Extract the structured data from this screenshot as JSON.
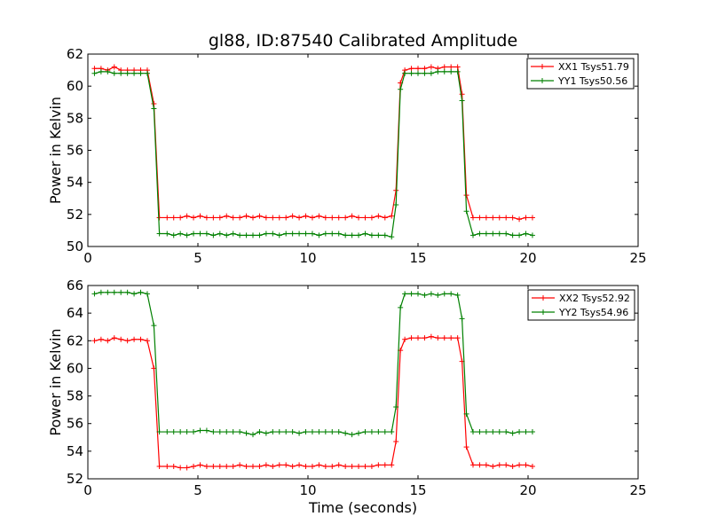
{
  "figure": {
    "title": "gl88, ID:87540 Calibrated Amplitude",
    "xlabel": "Time (seconds)",
    "colors": {
      "xx": "#ff0000",
      "yy": "#008000"
    }
  },
  "chart_data": [
    {
      "type": "line",
      "title": "gl88, ID:87540 Calibrated Amplitude",
      "xlabel": "",
      "ylabel": "Power in Kelvin",
      "xlim": [
        0,
        25
      ],
      "ylim": [
        50,
        62
      ],
      "xticks": [
        "0",
        "5",
        "10",
        "15",
        "20",
        "25"
      ],
      "yticks": [
        "50",
        "52",
        "54",
        "56",
        "58",
        "60",
        "62"
      ],
      "legend_position": "top-right",
      "grid": false,
      "series": [
        {
          "name": "XX1 Tsys51.79",
          "color": "#ff0000",
          "x": [
            0.3,
            0.6,
            0.9,
            1.2,
            1.5,
            1.8,
            2.1,
            2.4,
            2.7,
            3.0,
            3.25,
            3.6,
            3.9,
            4.2,
            4.5,
            4.8,
            5.1,
            5.4,
            5.7,
            6.0,
            6.3,
            6.6,
            6.9,
            7.2,
            7.5,
            7.8,
            8.1,
            8.4,
            8.7,
            9.0,
            9.3,
            9.6,
            9.9,
            10.2,
            10.5,
            10.8,
            11.1,
            11.4,
            11.7,
            12.0,
            12.3,
            12.6,
            12.9,
            13.2,
            13.5,
            13.8,
            14.0,
            14.2,
            14.4,
            14.7,
            15.0,
            15.3,
            15.6,
            15.9,
            16.2,
            16.5,
            16.8,
            17.0,
            17.2,
            17.5,
            17.8,
            18.1,
            18.4,
            18.7,
            19.0,
            19.3,
            19.6,
            19.9,
            20.2
          ],
          "y": [
            61.1,
            61.1,
            61.0,
            61.2,
            61.0,
            61.0,
            61.0,
            61.0,
            61.0,
            58.9,
            51.8,
            51.8,
            51.8,
            51.8,
            51.9,
            51.8,
            51.9,
            51.8,
            51.8,
            51.8,
            51.9,
            51.8,
            51.8,
            51.9,
            51.8,
            51.9,
            51.8,
            51.8,
            51.8,
            51.8,
            51.9,
            51.8,
            51.9,
            51.8,
            51.9,
            51.8,
            51.8,
            51.8,
            51.8,
            51.9,
            51.8,
            51.8,
            51.8,
            51.9,
            51.8,
            51.9,
            53.5,
            60.2,
            61.0,
            61.1,
            61.1,
            61.1,
            61.2,
            61.1,
            61.2,
            61.2,
            61.2,
            59.5,
            53.2,
            51.8,
            51.8,
            51.8,
            51.8,
            51.8,
            51.8,
            51.8,
            51.7,
            51.8,
            51.8
          ]
        },
        {
          "name": "YY1 Tsys50.56",
          "color": "#008000",
          "x": [
            0.3,
            0.6,
            0.9,
            1.2,
            1.5,
            1.8,
            2.1,
            2.4,
            2.7,
            3.0,
            3.25,
            3.6,
            3.9,
            4.2,
            4.5,
            4.8,
            5.1,
            5.4,
            5.7,
            6.0,
            6.3,
            6.6,
            6.9,
            7.2,
            7.5,
            7.8,
            8.1,
            8.4,
            8.7,
            9.0,
            9.3,
            9.6,
            9.9,
            10.2,
            10.5,
            10.8,
            11.1,
            11.4,
            11.7,
            12.0,
            12.3,
            12.6,
            12.9,
            13.2,
            13.5,
            13.8,
            14.0,
            14.2,
            14.4,
            14.7,
            15.0,
            15.3,
            15.6,
            15.9,
            16.2,
            16.5,
            16.8,
            17.0,
            17.2,
            17.5,
            17.8,
            18.1,
            18.4,
            18.7,
            19.0,
            19.3,
            19.6,
            19.9,
            20.2
          ],
          "y": [
            60.8,
            60.9,
            60.9,
            60.8,
            60.8,
            60.8,
            60.8,
            60.8,
            60.8,
            58.6,
            50.8,
            50.8,
            50.7,
            50.8,
            50.7,
            50.8,
            50.8,
            50.8,
            50.7,
            50.8,
            50.7,
            50.8,
            50.7,
            50.7,
            50.7,
            50.7,
            50.8,
            50.8,
            50.7,
            50.8,
            50.8,
            50.8,
            50.8,
            50.8,
            50.7,
            50.8,
            50.8,
            50.8,
            50.7,
            50.7,
            50.7,
            50.8,
            50.7,
            50.7,
            50.7,
            50.6,
            52.6,
            59.8,
            60.8,
            60.8,
            60.8,
            60.8,
            60.8,
            60.9,
            60.9,
            60.9,
            60.9,
            59.1,
            52.2,
            50.7,
            50.8,
            50.8,
            50.8,
            50.8,
            50.8,
            50.7,
            50.7,
            50.8,
            50.7
          ]
        }
      ]
    },
    {
      "type": "line",
      "xlabel": "Time (seconds)",
      "ylabel": "Power in Kelvin",
      "xlim": [
        0,
        25
      ],
      "ylim": [
        52,
        66
      ],
      "xticks": [
        "0",
        "5",
        "10",
        "15",
        "20",
        "25"
      ],
      "yticks": [
        "52",
        "54",
        "56",
        "58",
        "60",
        "62",
        "64",
        "66"
      ],
      "legend_position": "top-right",
      "grid": false,
      "series": [
        {
          "name": "XX2 Tsys52.92",
          "color": "#ff0000",
          "x": [
            0.3,
            0.6,
            0.9,
            1.2,
            1.5,
            1.8,
            2.1,
            2.4,
            2.7,
            3.0,
            3.25,
            3.6,
            3.9,
            4.2,
            4.5,
            4.8,
            5.1,
            5.4,
            5.7,
            6.0,
            6.3,
            6.6,
            6.9,
            7.2,
            7.5,
            7.8,
            8.1,
            8.4,
            8.7,
            9.0,
            9.3,
            9.6,
            9.9,
            10.2,
            10.5,
            10.8,
            11.1,
            11.4,
            11.7,
            12.0,
            12.3,
            12.6,
            12.9,
            13.2,
            13.5,
            13.8,
            14.0,
            14.2,
            14.4,
            14.7,
            15.0,
            15.3,
            15.6,
            15.9,
            16.2,
            16.5,
            16.8,
            17.0,
            17.2,
            17.5,
            17.8,
            18.1,
            18.4,
            18.7,
            19.0,
            19.3,
            19.6,
            19.9,
            20.2
          ],
          "y": [
            62.0,
            62.1,
            62.0,
            62.2,
            62.1,
            62.0,
            62.1,
            62.1,
            62.0,
            60.0,
            52.9,
            52.9,
            52.9,
            52.8,
            52.8,
            52.9,
            53.0,
            52.9,
            52.9,
            52.9,
            52.9,
            52.9,
            53.0,
            52.9,
            52.9,
            52.9,
            53.0,
            52.9,
            53.0,
            53.0,
            52.9,
            53.0,
            52.9,
            52.9,
            53.0,
            52.9,
            52.9,
            53.0,
            52.9,
            52.9,
            52.9,
            52.9,
            52.9,
            53.0,
            53.0,
            53.0,
            54.7,
            61.3,
            62.1,
            62.2,
            62.2,
            62.2,
            62.3,
            62.2,
            62.2,
            62.2,
            62.2,
            60.5,
            54.3,
            53.0,
            53.0,
            53.0,
            52.9,
            53.0,
            53.0,
            52.9,
            53.0,
            53.0,
            52.9
          ]
        },
        {
          "name": "YY2 Tsys54.96",
          "color": "#008000",
          "x": [
            0.3,
            0.6,
            0.9,
            1.2,
            1.5,
            1.8,
            2.1,
            2.4,
            2.7,
            3.0,
            3.25,
            3.6,
            3.9,
            4.2,
            4.5,
            4.8,
            5.1,
            5.4,
            5.7,
            6.0,
            6.3,
            6.6,
            6.9,
            7.2,
            7.5,
            7.8,
            8.1,
            8.4,
            8.7,
            9.0,
            9.3,
            9.6,
            9.9,
            10.2,
            10.5,
            10.8,
            11.1,
            11.4,
            11.7,
            12.0,
            12.3,
            12.6,
            12.9,
            13.2,
            13.5,
            13.8,
            14.0,
            14.2,
            14.4,
            14.7,
            15.0,
            15.3,
            15.6,
            15.9,
            16.2,
            16.5,
            16.8,
            17.0,
            17.2,
            17.5,
            17.8,
            18.1,
            18.4,
            18.7,
            19.0,
            19.3,
            19.6,
            19.9,
            20.2
          ],
          "y": [
            65.4,
            65.5,
            65.5,
            65.5,
            65.5,
            65.5,
            65.4,
            65.5,
            65.4,
            63.1,
            55.4,
            55.4,
            55.4,
            55.4,
            55.4,
            55.4,
            55.5,
            55.5,
            55.4,
            55.4,
            55.4,
            55.4,
            55.4,
            55.3,
            55.2,
            55.4,
            55.3,
            55.4,
            55.4,
            55.4,
            55.4,
            55.3,
            55.4,
            55.4,
            55.4,
            55.4,
            55.4,
            55.4,
            55.3,
            55.2,
            55.3,
            55.4,
            55.4,
            55.4,
            55.4,
            55.4,
            57.2,
            64.4,
            65.4,
            65.4,
            65.4,
            65.3,
            65.4,
            65.3,
            65.4,
            65.4,
            65.3,
            63.6,
            56.7,
            55.4,
            55.4,
            55.4,
            55.4,
            55.4,
            55.4,
            55.3,
            55.4,
            55.4,
            55.4
          ]
        }
      ]
    }
  ]
}
